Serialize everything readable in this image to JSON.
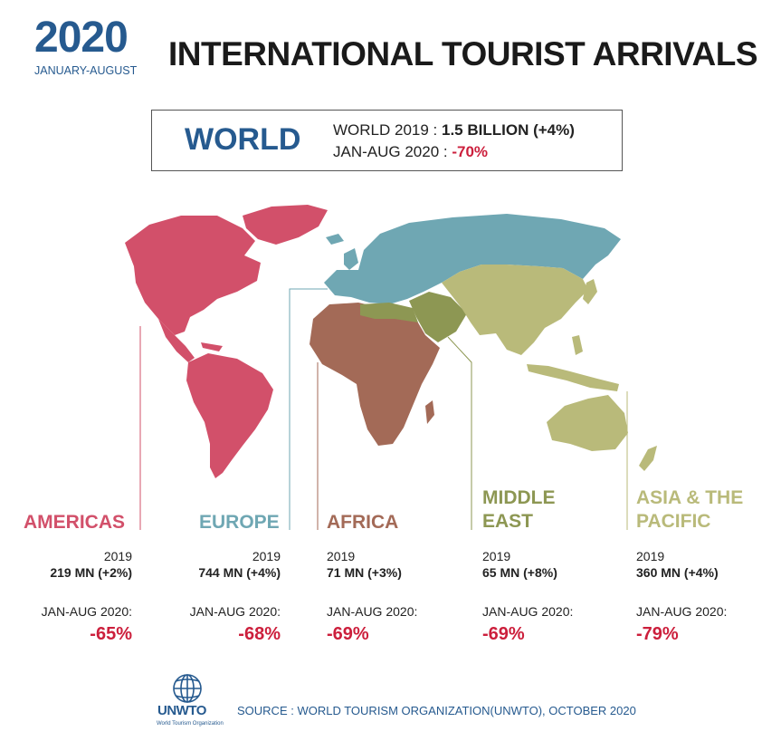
{
  "header": {
    "year": "2020",
    "period": "JANUARY-AUGUST",
    "title": "INTERNATIONAL TOURIST ARRIVALS"
  },
  "world": {
    "label": "WORLD",
    "line1_prefix": "WORLD 2019 : ",
    "line1_value": "1.5 BILLION (+4%)",
    "line2_prefix": "JAN-AUG 2020 : ",
    "line2_value": "-70%"
  },
  "regions": [
    {
      "name": "AMERICAS",
      "color": "#d2506a",
      "year": "2019",
      "value": "219 MN (+2%)",
      "jan_label": "JAN-AUG 2020:",
      "change": "-65%"
    },
    {
      "name": "EUROPE",
      "color": "#6fa7b3",
      "year": "2019",
      "value": "744 MN (+4%)",
      "jan_label": "JAN-AUG 2020:",
      "change": "-68%"
    },
    {
      "name": "AFRICA",
      "color": "#a36a57",
      "year": "2019",
      "value": "71 MN (+3%)",
      "jan_label": "JAN-AUG 2020:",
      "change": "-69%"
    },
    {
      "name_line1": "MIDDLE",
      "name_line2": "EAST",
      "color": "#8d9753",
      "year": "2019",
      "value": "65 MN (+8%)",
      "jan_label": "JAN-AUG 2020:",
      "change": "-69%"
    },
    {
      "name_line1": "ASIA & THE",
      "name_line2": "PACIFIC",
      "color": "#b9ba7a",
      "year": "2019",
      "value": "360 MN (+4%)",
      "jan_label": "JAN-AUG 2020:",
      "change": "-79%"
    }
  ],
  "footer": {
    "logo_text": "UNWTO",
    "logo_sub": "World Tourism Organization",
    "source": "SOURCE : WORLD TOURISM ORGANIZATION(UNWTO), OCTOBER 2020"
  },
  "colors": {
    "accent_blue": "#265a8f",
    "decline_red": "#cc1f3c"
  },
  "icons": [
    "unwto-globe-logo"
  ]
}
